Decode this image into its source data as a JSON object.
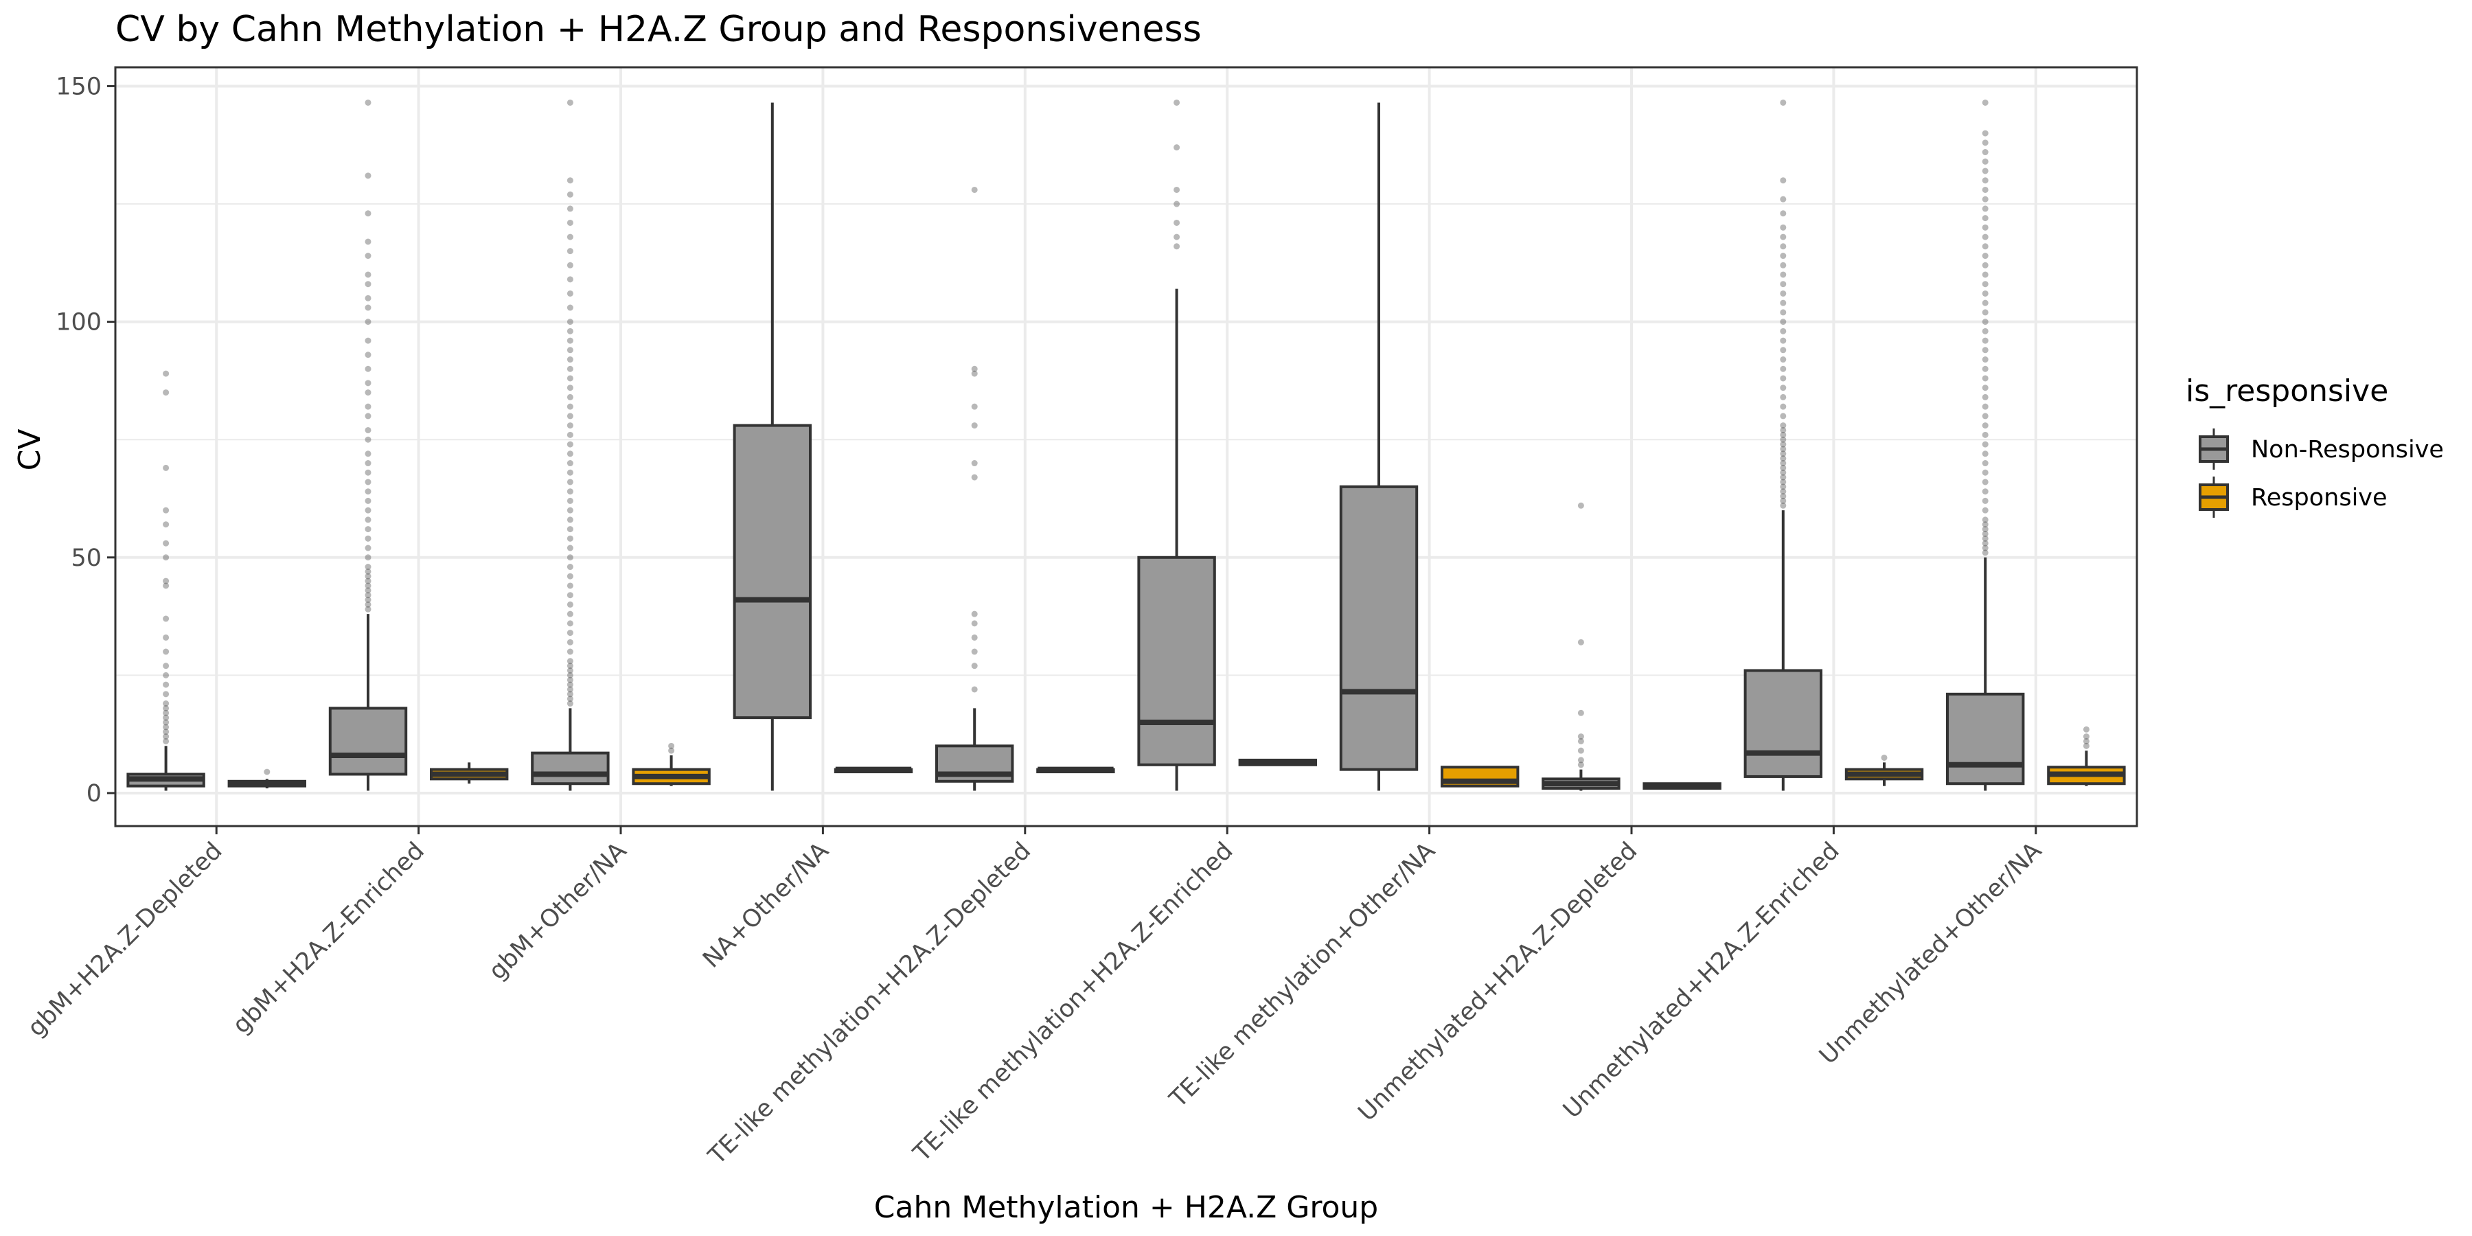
{
  "chart_data": {
    "type": "boxplot",
    "title": "CV by Cahn Methylation + H2A.Z Group and Responsiveness",
    "xlabel": "Cahn Methylation + H2A.Z Group",
    "ylabel": "CV",
    "ylim": [
      -7,
      154
    ],
    "yticks": [
      0,
      50,
      100,
      150
    ],
    "grid": true,
    "legend_position": "right",
    "legend": {
      "title": "is_responsive",
      "entries": [
        {
          "label": "Non-Responsive",
          "color": "#999999"
        },
        {
          "label": "Responsive",
          "color": "#E69F00"
        }
      ]
    },
    "categories": [
      "gbM+H2A.Z-Depleted",
      "gbM+H2A.Z-Enriched",
      "gbM+Other/NA",
      "NA+Other/NA",
      "TE-like methylation+H2A.Z-Depleted",
      "TE-like methylation+H2A.Z-Enriched",
      "TE-like methylation+Other/NA",
      "Unmethylated+H2A.Z-Depleted",
      "Unmethylated+H2A.Z-Enriched",
      "Unmethylated+Other/NA"
    ],
    "series": [
      {
        "name": "Non-Responsive",
        "color": "#999999",
        "boxes": [
          {
            "min": 0.5,
            "q1": 1.5,
            "median": 3,
            "q3": 4,
            "max": 10,
            "outliers": [
              11,
              12,
              13,
              14,
              15,
              16,
              17,
              18,
              19,
              21,
              23,
              25,
              27,
              30,
              33,
              37,
              44,
              45,
              50,
              53,
              57,
              60,
              69,
              85,
              89
            ]
          },
          {
            "min": 0.5,
            "q1": 4,
            "median": 8,
            "q3": 18,
            "max": 38,
            "outliers": [
              39,
              40,
              41,
              42,
              43,
              44,
              45,
              46,
              47,
              48,
              50,
              52,
              54,
              56,
              58,
              60,
              62,
              64,
              66,
              68,
              70,
              72,
              75,
              77,
              80,
              82,
              85,
              87,
              90,
              93,
              96,
              100,
              103,
              105,
              108,
              110,
              114,
              117,
              123,
              131,
              146.5
            ]
          },
          {
            "min": 0.5,
            "q1": 2,
            "median": 4,
            "q3": 8.5,
            "max": 18,
            "outliers": [
              19,
              20,
              21,
              22,
              23,
              24,
              25,
              26,
              27,
              28,
              30,
              32,
              34,
              36,
              38,
              40,
              42,
              44,
              46,
              48,
              50,
              52,
              54,
              56,
              58,
              60,
              62,
              64,
              66,
              68,
              70,
              72,
              74,
              76,
              78,
              80,
              82,
              84,
              86,
              88,
              90,
              92,
              94,
              96,
              98,
              100,
              103,
              106,
              109,
              112,
              115,
              118,
              121,
              124,
              127,
              130,
              146.5
            ]
          },
          {
            "min": 0.5,
            "q1": 16,
            "median": 41,
            "q3": 78,
            "max": 146.5,
            "outliers": []
          },
          {
            "min": 0.5,
            "q1": 2.5,
            "median": 4,
            "q3": 10,
            "max": 18,
            "outliers": [
              22,
              27,
              30,
              33,
              36,
              38,
              67,
              70,
              78,
              82,
              89,
              90,
              128
            ]
          },
          {
            "min": 0.5,
            "q1": 6,
            "median": 15,
            "q3": 50,
            "max": 107,
            "outliers": [
              116,
              118,
              121,
              125,
              128,
              137,
              146.5
            ]
          },
          {
            "min": 0.5,
            "q1": 5,
            "median": 21.5,
            "q3": 65,
            "max": 146.5,
            "outliers": []
          },
          {
            "min": 0.5,
            "q1": 1,
            "median": 2,
            "q3": 3,
            "max": 5,
            "outliers": [
              6,
              7,
              9,
              11,
              12,
              17,
              32,
              61
            ]
          },
          {
            "min": 0.5,
            "q1": 3.5,
            "median": 8.5,
            "q3": 26,
            "max": 60,
            "outliers": [
              61,
              62,
              63,
              64,
              65,
              66,
              67,
              68,
              69,
              70,
              71,
              72,
              73,
              74,
              75,
              76,
              77,
              78,
              80,
              82,
              84,
              86,
              88,
              90,
              92,
              94,
              96,
              98,
              100,
              102,
              104,
              106,
              108,
              110,
              112,
              114,
              116,
              118,
              120,
              123,
              126,
              130,
              146.5
            ]
          },
          {
            "min": 0.5,
            "q1": 2,
            "median": 6,
            "q3": 21,
            "max": 50,
            "outliers": [
              51,
              52,
              53,
              54,
              55,
              56,
              57,
              58,
              60,
              62,
              64,
              66,
              68,
              70,
              72,
              74,
              76,
              78,
              80,
              82,
              84,
              86,
              88,
              90,
              92,
              94,
              96,
              98,
              100,
              102,
              104,
              106,
              108,
              110,
              112,
              114,
              116,
              118,
              120,
              122,
              124,
              126,
              128,
              130,
              132,
              134,
              136,
              138,
              140,
              146.5
            ]
          }
        ]
      },
      {
        "name": "Responsive",
        "color": "#E69F00",
        "boxes": [
          {
            "min": 1,
            "q1": 1.5,
            "median": 2,
            "q3": 2.5,
            "max": 3,
            "outliers": [
              4.5
            ]
          },
          {
            "min": 2,
            "q1": 3,
            "median": 4,
            "q3": 5,
            "max": 6.5,
            "outliers": []
          },
          {
            "min": 1.5,
            "q1": 2,
            "median": 3.5,
            "q3": 5,
            "max": 8,
            "outliers": [
              9,
              10
            ]
          },
          {
            "min": 4.5,
            "q1": 4.5,
            "median": 5,
            "q3": 5,
            "max": 5.5,
            "outliers": []
          },
          {
            "min": 4.5,
            "q1": 4.5,
            "median": 5,
            "q3": 5,
            "max": 5.5,
            "outliers": []
          },
          {
            "min": 6,
            "q1": 6,
            "median": 6.5,
            "q3": 7,
            "max": 7,
            "outliers": []
          },
          {
            "min": 1.5,
            "q1": 1.5,
            "median": 2.5,
            "q3": 5.5,
            "max": 5.5,
            "outliers": []
          },
          {
            "min": 1,
            "q1": 1,
            "median": 1.5,
            "q3": 2,
            "max": 2,
            "outliers": []
          },
          {
            "min": 1.5,
            "q1": 3,
            "median": 4,
            "q3": 5,
            "max": 6.5,
            "outliers": [
              7.5
            ]
          },
          {
            "min": 1.5,
            "q1": 2,
            "median": 4,
            "q3": 5.5,
            "max": 9,
            "outliers": [
              10,
              11,
              12,
              13.5
            ]
          }
        ]
      }
    ]
  }
}
